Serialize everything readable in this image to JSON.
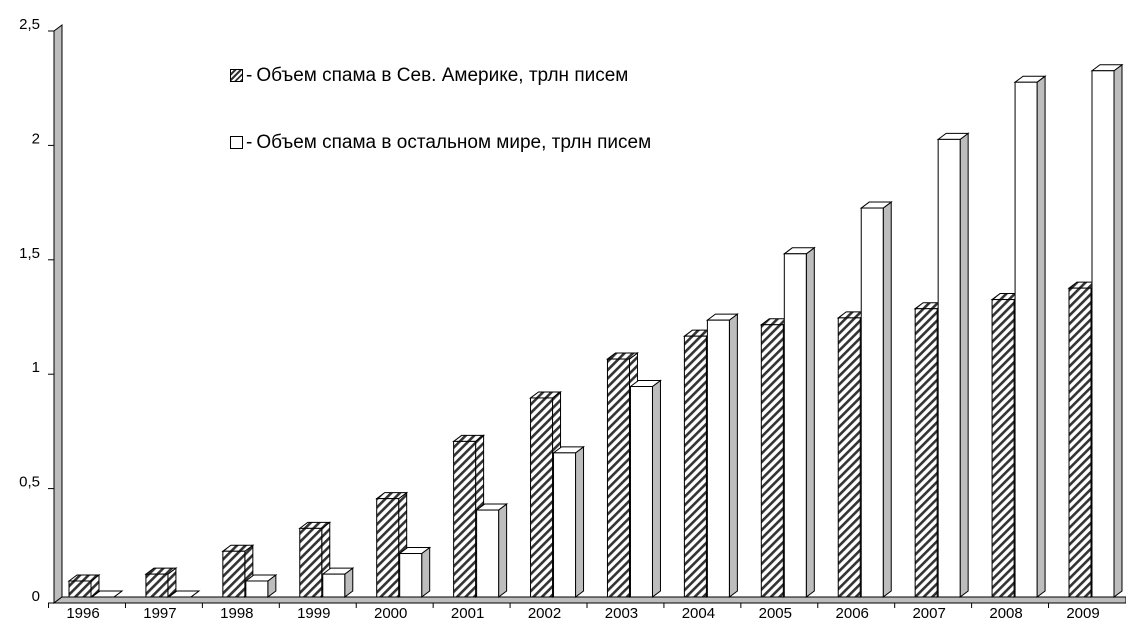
{
  "chart_data": {
    "type": "bar3d",
    "categories": [
      "1996",
      "1997",
      "1998",
      "1999",
      "2000",
      "2001",
      "2002",
      "2003",
      "2004",
      "2005",
      "2006",
      "2007",
      "2008",
      "2009"
    ],
    "series": [
      {
        "name": "Объем спама в Сев. Америке, трлн писем",
        "color": "hatched",
        "values": [
          0.07,
          0.1,
          0.2,
          0.3,
          0.43,
          0.68,
          0.87,
          1.04,
          1.14,
          1.19,
          1.22,
          1.26,
          1.3,
          1.35
        ]
      },
      {
        "name": "Объем спама в остальном мире, трлн писем",
        "color": "#ffffff",
        "values": [
          0,
          0,
          0.07,
          0.1,
          0.19,
          0.38,
          0.63,
          0.92,
          1.21,
          1.5,
          1.7,
          2.0,
          2.25,
          2.3
        ]
      }
    ],
    "ylim": [
      0,
      2.5
    ],
    "yticks": [
      0,
      {
        "value": 0.5,
        "label": "0,5"
      },
      1,
      {
        "value": 1.5,
        "label": "1,5"
      },
      2,
      {
        "value": 2.5,
        "label": "2,5"
      }
    ],
    "legend": "upper left"
  }
}
